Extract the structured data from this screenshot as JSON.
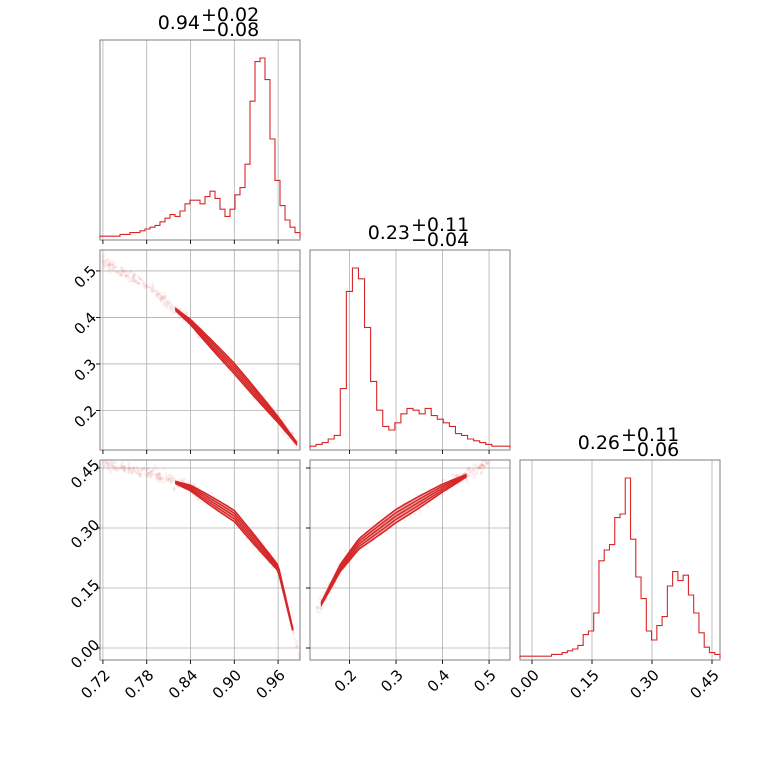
{
  "chart_data": {
    "type": "corner",
    "color": "#d62728",
    "grid": true,
    "parameters": [
      {
        "median": "0.94",
        "plus": "+0.02",
        "minus": "−0.08",
        "range": [
          0.716,
          0.99
        ],
        "ticks": [
          0.72,
          0.78,
          0.84,
          0.9,
          0.96
        ],
        "tick_labels": [
          "0.72",
          "0.78",
          "0.84",
          "0.90",
          "0.96"
        ],
        "hist": [
          0.01,
          0.01,
          0.01,
          0.01,
          0.02,
          0.02,
          0.03,
          0.03,
          0.04,
          0.05,
          0.06,
          0.07,
          0.09,
          0.11,
          0.13,
          0.12,
          0.15,
          0.19,
          0.21,
          0.21,
          0.19,
          0.23,
          0.26,
          0.22,
          0.16,
          0.12,
          0.16,
          0.24,
          0.28,
          0.41,
          0.76,
          0.98,
          1.0,
          0.88,
          0.55,
          0.32,
          0.18,
          0.1,
          0.06,
          0.03
        ]
      },
      {
        "median": "0.23",
        "plus": "+0.11",
        "minus": "−0.04",
        "range": [
          0.115,
          0.545
        ],
        "ticks": [
          0.2,
          0.3,
          0.4,
          0.5
        ],
        "tick_labels": [
          "0.2",
          "0.3",
          "0.4",
          "0.5"
        ],
        "hist": [
          0.01,
          0.02,
          0.03,
          0.05,
          0.07,
          0.33,
          0.87,
          1.0,
          0.94,
          0.67,
          0.37,
          0.21,
          0.12,
          0.1,
          0.14,
          0.19,
          0.22,
          0.21,
          0.19,
          0.22,
          0.18,
          0.16,
          0.14,
          0.12,
          0.08,
          0.07,
          0.05,
          0.04,
          0.03,
          0.02,
          0.01,
          0.01,
          0.01
        ]
      },
      {
        "median": "0.26",
        "plus": "+0.11",
        "minus": "−0.06",
        "range": [
          -0.03,
          0.47
        ],
        "ticks": [
          0.0,
          0.15,
          0.3,
          0.45
        ],
        "tick_labels": [
          "0.00",
          "0.15",
          "0.30",
          "0.45"
        ],
        "hist": [
          0.01,
          0.01,
          0.01,
          0.01,
          0.01,
          0.01,
          0.02,
          0.02,
          0.03,
          0.04,
          0.05,
          0.07,
          0.13,
          0.15,
          0.25,
          0.54,
          0.6,
          0.63,
          0.78,
          0.8,
          1.0,
          0.66,
          0.45,
          0.33,
          0.15,
          0.1,
          0.18,
          0.23,
          0.4,
          0.48,
          0.43,
          0.46,
          0.35,
          0.25,
          0.14,
          0.06,
          0.03,
          0.02
        ]
      }
    ],
    "pairs": [
      {
        "x_param": 0,
        "y_param": 1,
        "curve": [
          [
            0.72,
            0.52
          ],
          [
            0.78,
            0.47
          ],
          [
            0.84,
            0.39
          ],
          [
            0.9,
            0.29
          ],
          [
            0.96,
            0.18
          ],
          [
            0.99,
            0.12
          ]
        ],
        "core": [
          0.82,
          0.985
        ],
        "width": 0.02
      },
      {
        "x_param": 0,
        "y_param": 2,
        "curve": [
          [
            0.72,
            0.46
          ],
          [
            0.78,
            0.44
          ],
          [
            0.84,
            0.4
          ],
          [
            0.9,
            0.33
          ],
          [
            0.96,
            0.2
          ],
          [
            0.99,
            -0.03
          ]
        ],
        "core": [
          0.82,
          0.98
        ],
        "width": 0.025
      },
      {
        "x_param": 1,
        "y_param": 2,
        "curve": [
          [
            0.13,
            0.09
          ],
          [
            0.18,
            0.2
          ],
          [
            0.22,
            0.26
          ],
          [
            0.3,
            0.33
          ],
          [
            0.4,
            0.4
          ],
          [
            0.45,
            0.43
          ],
          [
            0.5,
            0.47
          ]
        ],
        "core": [
          0.14,
          0.45
        ],
        "width": 0.03
      }
    ]
  }
}
